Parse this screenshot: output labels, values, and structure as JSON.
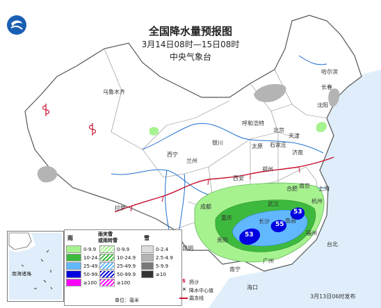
{
  "title": "全国降水量预报图",
  "period": "3月14日08时—15日08时",
  "agency": "中央气象台",
  "issued": "3月13日06时发布",
  "cities": [
    {
      "name": "乌鲁木齐",
      "key": "urumqi"
    },
    {
      "name": "哈尔滨",
      "key": "harbin"
    },
    {
      "name": "长春",
      "key": "changchun"
    },
    {
      "name": "沈阳",
      "key": "shenyang"
    },
    {
      "name": "呼和浩特",
      "key": "hohhot"
    },
    {
      "name": "北京",
      "key": "beijing"
    },
    {
      "name": "天津",
      "key": "tianjin"
    },
    {
      "name": "银川",
      "key": "yinchuan"
    },
    {
      "name": "太原",
      "key": "taiyuan"
    },
    {
      "name": "石家庄",
      "key": "shijiazhuang"
    },
    {
      "name": "济南",
      "key": "jinan"
    },
    {
      "name": "西宁",
      "key": "xining"
    },
    {
      "name": "兰州",
      "key": "lanzhou"
    },
    {
      "name": "郑州",
      "key": "zhengzhou"
    },
    {
      "name": "西安",
      "key": "xian"
    },
    {
      "name": "合肥",
      "key": "hefei"
    },
    {
      "name": "南京",
      "key": "nanjing"
    },
    {
      "name": "上海",
      "key": "shanghai"
    },
    {
      "name": "武汉",
      "key": "wuhan"
    },
    {
      "name": "成都",
      "key": "chengdu"
    },
    {
      "name": "重庆",
      "key": "chongqing"
    },
    {
      "name": "长沙",
      "key": "changsha"
    },
    {
      "name": "南昌",
      "key": "nanchang"
    },
    {
      "name": "杭州",
      "key": "hangzhou"
    },
    {
      "name": "福州",
      "key": "fuzhou"
    },
    {
      "name": "贵阳",
      "key": "guiyang"
    },
    {
      "name": "昆明",
      "key": "kunming"
    },
    {
      "name": "南宁",
      "key": "nanning"
    },
    {
      "name": "广州",
      "key": "guangzhou"
    },
    {
      "name": "拉萨",
      "key": "lhasa"
    },
    {
      "name": "台北",
      "key": "taipei"
    },
    {
      "name": "海口",
      "key": "haikou"
    }
  ],
  "rain_centers": [
    "53",
    "55",
    "53"
  ],
  "inset_label": "南海诸岛",
  "legend": {
    "rain": "雨",
    "mixed": "雨夹雪\n或雨转雪",
    "mixed_line1": "雨夹雪",
    "mixed_line2": "或雨转雪",
    "snow": "雪",
    "rain_ranges": [
      "0-9.9",
      "10-24.9",
      "25-49.9",
      "50-99.9",
      "≥100"
    ],
    "mixed_ranges": [
      "0-9.9",
      "10-24.9",
      "25-49.9",
      "50-99.9",
      "≥100"
    ],
    "snow_ranges": [
      "0-2.4",
      "2.5-4.9",
      "5-9.9",
      "≥10"
    ],
    "rain_colors": [
      "#a6f28f",
      "#3dba3d",
      "#61b8ff",
      "#0000e1",
      "#fa00fa"
    ],
    "snow_colors": [
      "#dcdcdc",
      "#b4b4b4",
      "#787878",
      "#333333"
    ],
    "sand": "扬沙",
    "center": "降水中心值",
    "frost": "霜冻线",
    "unit": "单位：毫米"
  }
}
